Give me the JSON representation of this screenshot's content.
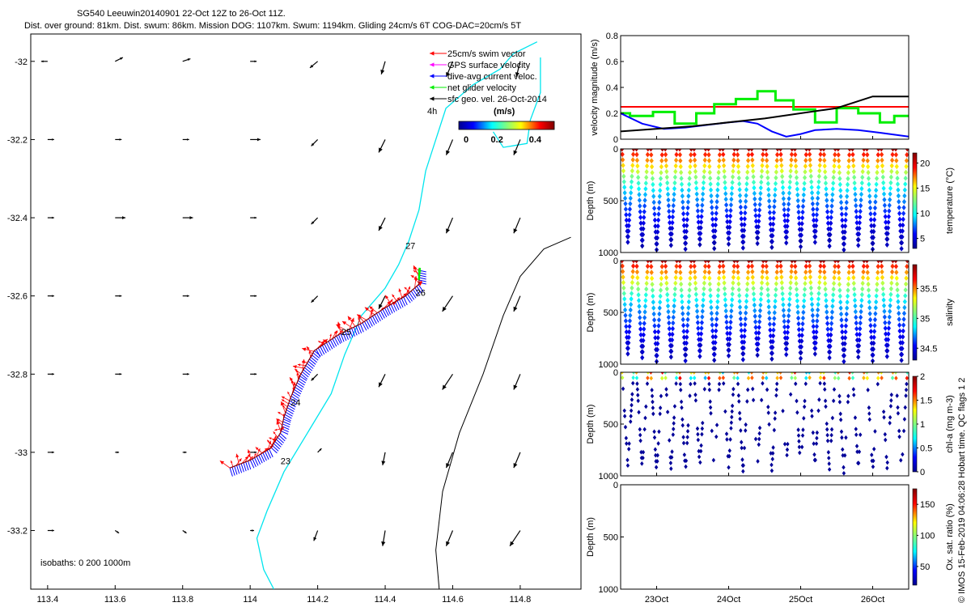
{
  "header": {
    "title": "SG540 Leeuwin20140901 22-Oct 12Z to 26-Oct 11Z.",
    "subtitle": "Dist. over ground: 81km. Dist. swum: 86km. Mission DOG: 1107km. Swum: 1194km. Gliding 24cm/s 6T COG-DAC=20cm/s 5T"
  },
  "footer_credit": "© IMOS 15-Feb-2019 04:06:28 Hobart time. QC flags 1 2",
  "colors": {
    "swim": "#ff0000",
    "gps": "#ff00ff",
    "dac": "#0000ff",
    "net": "#00ee00",
    "geo": "#000000",
    "coast": "#00e5ee",
    "isobath": "#000000"
  },
  "chart_data": [
    {
      "id": "map",
      "type": "scatter",
      "x_ticks": [
        "113.4",
        "113.6",
        "113.8",
        "114",
        "114.2",
        "114.4",
        "114.6",
        "114.8"
      ],
      "y_ticks": [
        "-32",
        "-32.2",
        "-32.4",
        "-32.6",
        "-32.8",
        "-33",
        "-33.2"
      ],
      "xlim": [
        113.35,
        114.98
      ],
      "ylim": [
        -33.35,
        -31.93
      ],
      "legend": [
        {
          "label": "25cm/s swim vector",
          "color": "#ff0000"
        },
        {
          "label": "GPS surface velocity",
          "color": "#ff00ff"
        },
        {
          "label": "dive-avg current veloc.",
          "color": "#0000ff"
        },
        {
          "label": "net glider velocity",
          "color": "#00ee00"
        },
        {
          "label": "sfc geo. vel. 26-Oct-2014",
          "color": "#000000"
        }
      ],
      "legend_extra": "4h",
      "colorbar": {
        "title": "(m/s)",
        "ticks": [
          "0",
          "0.2",
          "0.4"
        ],
        "range": [
          0,
          0.5
        ]
      },
      "isobath_text": "isobaths: 0   200   1000m",
      "track": [
        [
          113.94,
          -33.04
        ],
        [
          114.0,
          -33.02
        ],
        [
          114.06,
          -32.99
        ],
        [
          114.09,
          -32.95
        ],
        [
          114.1,
          -32.91
        ],
        [
          114.12,
          -32.86
        ],
        [
          114.15,
          -32.8
        ],
        [
          114.19,
          -32.74
        ],
        [
          114.26,
          -32.7
        ],
        [
          114.33,
          -32.67
        ],
        [
          114.4,
          -32.63
        ],
        [
          114.46,
          -32.6
        ],
        [
          114.5,
          -32.57
        ],
        [
          114.5,
          -32.53
        ]
      ],
      "day_labels": [
        {
          "text": "23",
          "x": 114.09,
          "y": -33.03
        },
        {
          "text": "24",
          "x": 114.12,
          "y": -32.88
        },
        {
          "text": "25",
          "x": 114.27,
          "y": -32.7
        },
        {
          "text": "26",
          "x": 114.49,
          "y": -32.6
        },
        {
          "text": "27",
          "x": 114.46,
          "y": -32.48
        }
      ],
      "coast": [
        [
          114.07,
          -33.35
        ],
        [
          114.04,
          -33.3
        ],
        [
          114.02,
          -33.22
        ],
        [
          114.05,
          -33.15
        ],
        [
          114.1,
          -33.05
        ],
        [
          114.17,
          -32.95
        ],
        [
          114.24,
          -32.85
        ],
        [
          114.28,
          -32.75
        ],
        [
          114.33,
          -32.65
        ],
        [
          114.4,
          -32.58
        ],
        [
          114.44,
          -32.52
        ],
        [
          114.47,
          -32.46
        ],
        [
          114.5,
          -32.38
        ],
        [
          114.52,
          -32.28
        ],
        [
          114.55,
          -32.2
        ],
        [
          114.58,
          -32.12
        ],
        [
          114.66,
          -32.06
        ],
        [
          114.74,
          -32.02
        ],
        [
          114.78,
          -31.98
        ],
        [
          114.85,
          -31.95
        ]
      ],
      "isobath_200": [
        [
          114.86,
          -31.99
        ],
        [
          114.86,
          -32.08
        ],
        [
          114.83,
          -32.15
        ],
        [
          114.82,
          -32.21
        ],
        [
          114.75,
          -32.22
        ],
        [
          114.72,
          -32.18
        ]
      ],
      "isobath_1000": [
        [
          114.56,
          -33.35
        ],
        [
          114.55,
          -33.25
        ],
        [
          114.57,
          -33.1
        ],
        [
          114.62,
          -32.95
        ],
        [
          114.69,
          -32.8
        ],
        [
          114.75,
          -32.65
        ],
        [
          114.8,
          -32.55
        ],
        [
          114.87,
          -32.48
        ],
        [
          114.95,
          -32.45
        ]
      ],
      "geo_vectors": {
        "lons": [
          113.4,
          113.6,
          113.8,
          114.0,
          114.2,
          114.4,
          114.6,
          114.8
        ],
        "lats": [
          -32.0,
          -32.2,
          -32.4,
          -32.6,
          -32.8,
          -33.0,
          -33.2
        ],
        "u": [
          [
            -0.05,
            0.06,
            0.06,
            0.05,
            -0.06,
            -0.03,
            -0.05,
            -0.03
          ],
          [
            0.05,
            0.05,
            0.05,
            0.08,
            -0.05,
            -0.05,
            -0.05,
            -0.05
          ],
          [
            0.05,
            0.08,
            0.08,
            0.05,
            -0.05,
            -0.05,
            -0.05,
            -0.05
          ],
          [
            0.05,
            0.05,
            0.05,
            0.05,
            -0.05,
            -0.05,
            -0.08,
            -0.05
          ],
          [
            0.05,
            0.05,
            0.05,
            0.05,
            -0.05,
            -0.05,
            -0.08,
            -0.05
          ],
          [
            0.05,
            0.03,
            0.03,
            0.05,
            0.03,
            -0.02,
            -0.05,
            -0.05
          ],
          [
            0.05,
            0.03,
            0.03,
            0.03,
            -0.03,
            -0.02,
            -0.05,
            -0.08
          ]
        ],
        "v": [
          [
            0.0,
            0.03,
            0.02,
            0.0,
            -0.05,
            -0.1,
            -0.12,
            -0.12
          ],
          [
            0.0,
            0.0,
            0.0,
            0.0,
            -0.05,
            -0.1,
            -0.12,
            -0.12
          ],
          [
            0.0,
            0.0,
            0.0,
            0.0,
            -0.05,
            -0.1,
            -0.12,
            -0.12
          ],
          [
            0.0,
            0.0,
            0.0,
            0.0,
            -0.05,
            -0.1,
            -0.12,
            -0.12
          ],
          [
            0.0,
            0.0,
            0.0,
            0.0,
            -0.05,
            -0.1,
            -0.12,
            -0.12
          ],
          [
            0.0,
            0.0,
            0.0,
            0.0,
            0.03,
            -0.1,
            -0.12,
            -0.12
          ],
          [
            0.0,
            -0.02,
            -0.02,
            0.0,
            -0.08,
            -0.12,
            -0.12,
            -0.12
          ]
        ]
      }
    },
    {
      "id": "velocity",
      "type": "line",
      "ylabel": "velocity magnitude (m/s)",
      "y_ticks": [
        "0",
        "0.2",
        "0.4",
        "0.6",
        "0.8"
      ],
      "ylim": [
        0,
        0.8
      ],
      "xlim": [
        0,
        4
      ],
      "series": [
        {
          "name": "swim",
          "color": "#ff0000",
          "x": [
            0,
            4
          ],
          "y": [
            0.25,
            0.25
          ]
        },
        {
          "name": "net glider velocity",
          "color": "#00ee00",
          "x": [
            0,
            0.13,
            0.13,
            0.45,
            0.45,
            0.75,
            0.75,
            1.05,
            1.05,
            1.3,
            1.3,
            1.6,
            1.6,
            1.9,
            1.9,
            2.15,
            2.15,
            2.4,
            2.4,
            2.7,
            2.7,
            3.0,
            3.0,
            3.3,
            3.3,
            3.6,
            3.6,
            3.8,
            3.8,
            4.0
          ],
          "y": [
            0.2,
            0.2,
            0.18,
            0.18,
            0.21,
            0.21,
            0.12,
            0.12,
            0.2,
            0.2,
            0.27,
            0.27,
            0.31,
            0.31,
            0.37,
            0.37,
            0.3,
            0.3,
            0.23,
            0.23,
            0.13,
            0.13,
            0.24,
            0.24,
            0.2,
            0.2,
            0.13,
            0.13,
            0.18,
            0.18
          ]
        },
        {
          "name": "dive-avg current veloc.",
          "color": "#0000ff",
          "x": [
            0,
            0.3,
            0.6,
            0.9,
            1.2,
            1.5,
            1.7,
            1.9,
            2.1,
            2.3,
            2.5,
            2.7,
            3.0,
            3.3,
            3.6,
            4.0
          ],
          "y": [
            0.2,
            0.12,
            0.08,
            0.09,
            0.11,
            0.13,
            0.14,
            0.12,
            0.06,
            0.02,
            0.04,
            0.07,
            0.08,
            0.07,
            0.05,
            0.02
          ]
        },
        {
          "name": "sfc geo. vel.",
          "color": "#000000",
          "x": [
            0,
            1,
            2,
            3,
            3.5,
            4
          ],
          "y": [
            0.06,
            0.1,
            0.16,
            0.24,
            0.33,
            0.33
          ]
        }
      ]
    },
    {
      "id": "temperature",
      "type": "scatter",
      "ylabel": "Depth (m)",
      "y_ticks": [
        "0",
        "500",
        "1000"
      ],
      "ylim": [
        1000,
        0
      ],
      "cb_label": "temperature (°C)",
      "cb_ticks": [
        "5",
        "10",
        "15",
        "20"
      ],
      "cb_range": [
        3,
        22
      ],
      "surface_value": 21,
      "deep_value": 4,
      "profiles": 20
    },
    {
      "id": "salinity",
      "type": "scatter",
      "ylabel": "Depth (m)",
      "y_ticks": [
        "0",
        "500",
        "1000"
      ],
      "ylim": [
        1000,
        0
      ],
      "cb_label": "salinity",
      "cb_ticks": [
        "34.5",
        "35",
        "35.5"
      ],
      "cb_range": [
        34.3,
        35.9
      ],
      "surface_value": 35.8,
      "deep_value": 34.4,
      "profiles": 20
    },
    {
      "id": "chla",
      "type": "scatter",
      "ylabel": "Depth (m)",
      "y_ticks": [
        "0",
        "500",
        "1000"
      ],
      "ylim": [
        1000,
        0
      ],
      "cb_label": "chl-a (mg m-3)",
      "cb_ticks": [
        "0",
        "0.5",
        "1",
        "1.5",
        "2"
      ],
      "cb_range": [
        0,
        2
      ],
      "profiles": 20
    },
    {
      "id": "oxygen",
      "type": "scatter",
      "ylabel": "Depth (m)",
      "y_ticks": [
        "0",
        "500",
        "1000"
      ],
      "ylim": [
        1000,
        0
      ],
      "cb_label": "Ox. sat. ratio (%)",
      "cb_ticks": [
        "50",
        "100",
        "150"
      ],
      "cb_range": [
        20,
        175
      ],
      "x_ticks": [
        "23Oct",
        "24Oct",
        "25Oct",
        "26Oct"
      ],
      "x_tick_pos": [
        0.5,
        1.5,
        2.5,
        3.5
      ],
      "xlim": [
        0,
        4
      ]
    }
  ]
}
